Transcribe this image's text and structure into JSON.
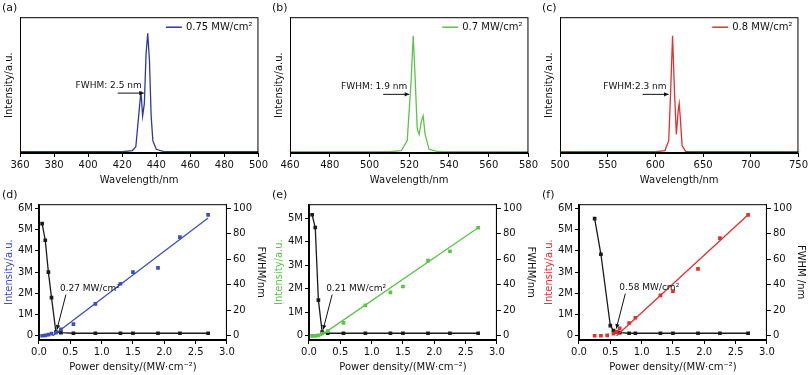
{
  "chart_data": [
    {
      "type": "line",
      "title": "(a)",
      "xlabel": "Wavelength/nm",
      "ylabel": "Intensity/a.u.",
      "xlim": [
        360,
        500
      ],
      "xticks": [
        360,
        380,
        400,
        420,
        440,
        460,
        480,
        500
      ],
      "ylim": [
        0,
        1.1
      ],
      "tick_labels": "x",
      "grid": false,
      "legend": "upper right",
      "annotations": [
        {
          "text": "FWHM: 2.5 nm"
        }
      ],
      "series": [
        {
          "name": "0.75 MW/cm²",
          "color": "#2e3a9c",
          "marker": "none",
          "line_style": "solid",
          "x": [
            360,
            400,
            420,
            426,
            428,
            430,
            431,
            432,
            433,
            434,
            435,
            436,
            437,
            438,
            440,
            445,
            500
          ],
          "values": [
            0.01,
            0.01,
            0.01,
            0.02,
            0.05,
            0.35,
            0.5,
            0.3,
            0.4,
            0.8,
            0.97,
            0.75,
            0.3,
            0.1,
            0.03,
            0.01,
            0.01
          ]
        }
      ]
    },
    {
      "type": "line",
      "title": "(b)",
      "xlabel": "Wavelength/nm",
      "ylabel": "Intensity/a.u.",
      "xlim": [
        460,
        580
      ],
      "xticks": [
        460,
        480,
        500,
        520,
        540,
        560,
        580
      ],
      "ylim": [
        0,
        1.1
      ],
      "tick_labels": "x",
      "grid": false,
      "legend": "upper right",
      "annotations": [
        {
          "text": "FWHM: 1.9 nm"
        }
      ],
      "series": [
        {
          "name": "0.7 MW/cm²",
          "color": "#5cc44a",
          "marker": "none",
          "line_style": "solid",
          "x": [
            460,
            510,
            516,
            519,
            521,
            522,
            523,
            524,
            525,
            526,
            527,
            528,
            530,
            535,
            580
          ],
          "values": [
            0.01,
            0.01,
            0.02,
            0.1,
            0.6,
            0.95,
            0.6,
            0.2,
            0.15,
            0.25,
            0.3,
            0.15,
            0.03,
            0.01,
            0.01
          ]
        }
      ]
    },
    {
      "type": "line",
      "title": "(c)",
      "xlabel": "Wavelength/nm",
      "ylabel": "Intensity/a.u.",
      "xlim": [
        500,
        750
      ],
      "xticks": [
        500,
        550,
        600,
        650,
        700,
        750
      ],
      "ylim": [
        0,
        1.1
      ],
      "tick_labels": "x",
      "grid": false,
      "legend": "upper right",
      "annotations": [
        {
          "text": "FWHM:2.3 nm"
        }
      ],
      "series": [
        {
          "name": "0.8 MW/cm²",
          "color": "#e03030",
          "marker": "none",
          "line_style": "solid",
          "x": [
            500,
            600,
            610,
            614,
            616,
            618,
            620,
            622,
            624,
            625,
            626,
            628,
            632,
            750
          ],
          "values": [
            0.01,
            0.01,
            0.02,
            0.1,
            0.5,
            0.95,
            0.5,
            0.15,
            0.35,
            0.4,
            0.3,
            0.06,
            0.01,
            0.01
          ]
        }
      ]
    },
    {
      "type": "scatter",
      "title": "(d)",
      "xlabel": "Power density/(MW·cm⁻²)",
      "ylabel": "Intensity/a.u.",
      "y2label": "FWHM/nm",
      "xlim": [
        0,
        3
      ],
      "xticks": [
        {
          "value": 0,
          "label": "0.0"
        },
        0.5,
        {
          "value": 1,
          "label": "1.0"
        },
        1.5,
        {
          "value": 2,
          "label": "2.0"
        },
        2.5,
        {
          "value": 3,
          "label": "3.0"
        }
      ],
      "ylim": [
        -200000,
        6200000
      ],
      "yticks": [
        0,
        {
          "value": 1000000,
          "label": "1M"
        },
        {
          "value": 2000000,
          "label": "2M"
        },
        {
          "value": 3000000,
          "label": "3M"
        },
        {
          "value": 4000000,
          "label": "4M"
        },
        {
          "value": 5000000,
          "label": "5M"
        },
        {
          "value": 6000000,
          "label": "6M"
        }
      ],
      "y2lim": [
        -3.3,
        103.3
      ],
      "y2ticks": [
        0,
        20,
        40,
        60,
        80,
        100
      ],
      "grid": false,
      "annotations": [
        {
          "text": "0.27 MW/cm²",
          "x": 0.27,
          "y": 100000
        }
      ],
      "series": [
        {
          "type": "scatter",
          "marker": "square",
          "color": "#3a4fc0",
          "axis": "y",
          "x": [
            0.05,
            0.1,
            0.15,
            0.2,
            0.27,
            0.35,
            0.55,
            0.9,
            1.3,
            1.5,
            1.9,
            2.25,
            2.7
          ],
          "values": [
            0,
            20000,
            50000,
            100000,
            150000,
            300000,
            550000,
            1500000,
            2450000,
            3000000,
            3200000,
            4650000,
            5700000
          ]
        },
        {
          "type": "line",
          "marker": "none",
          "line_style": "solid",
          "color": "#3a4fc0",
          "axis": "y",
          "x": [
            0.22,
            2.7
          ],
          "values": [
            0,
            5550000
          ]
        },
        {
          "type": "line",
          "marker": "square",
          "line_style": "solid",
          "color": "#1a1a1a",
          "axis": "y2",
          "x": [
            0.05,
            0.1,
            0.15,
            0.2,
            0.27,
            0.35,
            0.55,
            0.9,
            1.3,
            1.5,
            1.9,
            2.25,
            2.7
          ],
          "values": [
            88,
            75,
            50,
            30,
            3,
            2.5,
            2,
            2,
            2,
            2,
            2,
            2,
            2
          ]
        }
      ]
    },
    {
      "type": "scatter",
      "title": "(e)",
      "xlabel": "Power density/(MW·cm⁻²)",
      "ylabel": "Intensity/a.u.",
      "y2label": "FWHM/nm",
      "xlim": [
        0,
        3
      ],
      "xticks": [
        {
          "value": 0,
          "label": "0.0"
        },
        0.5,
        {
          "value": 1,
          "label": "1.0"
        },
        1.5,
        {
          "value": 2,
          "label": "2.0"
        },
        2.5,
        {
          "value": 3,
          "label": "3.0"
        }
      ],
      "ylim": [
        -175000,
        5600000
      ],
      "yticks": [
        0,
        {
          "value": 1000000,
          "label": "1M"
        },
        {
          "value": 2000000,
          "label": "2M"
        },
        {
          "value": 3000000,
          "label": "3M"
        },
        {
          "value": 4000000,
          "label": "4M"
        },
        {
          "value": 5000000,
          "label": "5M"
        }
      ],
      "y2lim": [
        -3.3,
        103.3
      ],
      "y2ticks": [
        0,
        20,
        40,
        60,
        80,
        100
      ],
      "grid": false,
      "annotations": [
        {
          "text": "0.21 MW/cm²",
          "x": 0.21,
          "y": 100000
        }
      ],
      "series": [
        {
          "type": "scatter",
          "marker": "square",
          "color": "#5cc44a",
          "axis": "y",
          "x": [
            0.05,
            0.1,
            0.15,
            0.21,
            0.3,
            0.55,
            0.9,
            1.3,
            1.5,
            1.9,
            2.25,
            2.7
          ],
          "values": [
            0,
            0,
            20000,
            100000,
            200000,
            550000,
            1300000,
            1850000,
            2100000,
            3200000,
            3600000,
            4600000
          ]
        },
        {
          "type": "line",
          "marker": "none",
          "line_style": "solid",
          "color": "#5cc44a",
          "axis": "y",
          "x": [
            0.18,
            2.7
          ],
          "values": [
            0,
            4600000
          ]
        },
        {
          "type": "line",
          "marker": "square",
          "line_style": "solid",
          "color": "#1a1a1a",
          "axis": "y2",
          "x": [
            0.05,
            0.1,
            0.15,
            0.21,
            0.3,
            0.55,
            0.9,
            1.3,
            1.5,
            1.9,
            2.25,
            2.7
          ],
          "values": [
            95,
            85,
            28,
            3,
            2,
            2,
            2,
            2,
            2,
            2,
            2,
            2
          ]
        }
      ]
    },
    {
      "type": "scatter",
      "title": "(f)",
      "xlabel": "Power density/(MW·cm⁻²)",
      "ylabel": "Intensity/a.u.",
      "y2label": "FWHM /nm",
      "xlim": [
        0,
        3
      ],
      "xticks": [
        {
          "value": 0,
          "label": "0.0"
        },
        0.5,
        {
          "value": 1,
          "label": "1.0"
        },
        1.5,
        {
          "value": 2,
          "label": "2.0"
        },
        2.5,
        {
          "value": 3,
          "label": "3.0"
        }
      ],
      "ylim": [
        -200000,
        6200000
      ],
      "yticks": [
        0,
        {
          "value": 1000000,
          "label": "1M"
        },
        {
          "value": 2000000,
          "label": "2M"
        },
        {
          "value": 3000000,
          "label": "3M"
        },
        {
          "value": 4000000,
          "label": "4M"
        },
        {
          "value": 5000000,
          "label": "5M"
        },
        {
          "value": 6000000,
          "label": "6M"
        }
      ],
      "y2lim": [
        -3.3,
        103.3
      ],
      "y2ticks": [
        0,
        20,
        40,
        60,
        80,
        100
      ],
      "grid": false,
      "annotations": [
        {
          "text": "0.58 MW/cm²",
          "x": 0.58,
          "y": 150000
        }
      ],
      "series": [
        {
          "type": "scatter",
          "marker": "square",
          "color": "#e03030",
          "axis": "y",
          "x": [
            0.25,
            0.35,
            0.45,
            0.55,
            0.6,
            0.65,
            0.8,
            0.9,
            1.3,
            1.5,
            1.9,
            2.25,
            2.7
          ],
          "values": [
            0,
            0,
            20000,
            100000,
            200000,
            350000,
            600000,
            850000,
            1900000,
            2100000,
            3150000,
            4600000,
            5700000
          ]
        },
        {
          "type": "line",
          "marker": "none",
          "line_style": "solid",
          "color": "#e03030",
          "axis": "y",
          "x": [
            0.6,
            2.7
          ],
          "values": [
            0,
            5700000
          ]
        },
        {
          "type": "line",
          "marker": "square",
          "line_style": "solid",
          "color": "#1a1a1a",
          "axis": "y2",
          "x": [
            0.25,
            0.35,
            0.5,
            0.55,
            0.6,
            0.65,
            0.8,
            0.9,
            1.3,
            1.5,
            1.9,
            2.25,
            2.7
          ],
          "values": [
            92,
            64,
            8,
            4,
            3,
            2.5,
            2,
            2,
            2,
            2,
            2,
            2,
            2
          ]
        }
      ]
    }
  ]
}
